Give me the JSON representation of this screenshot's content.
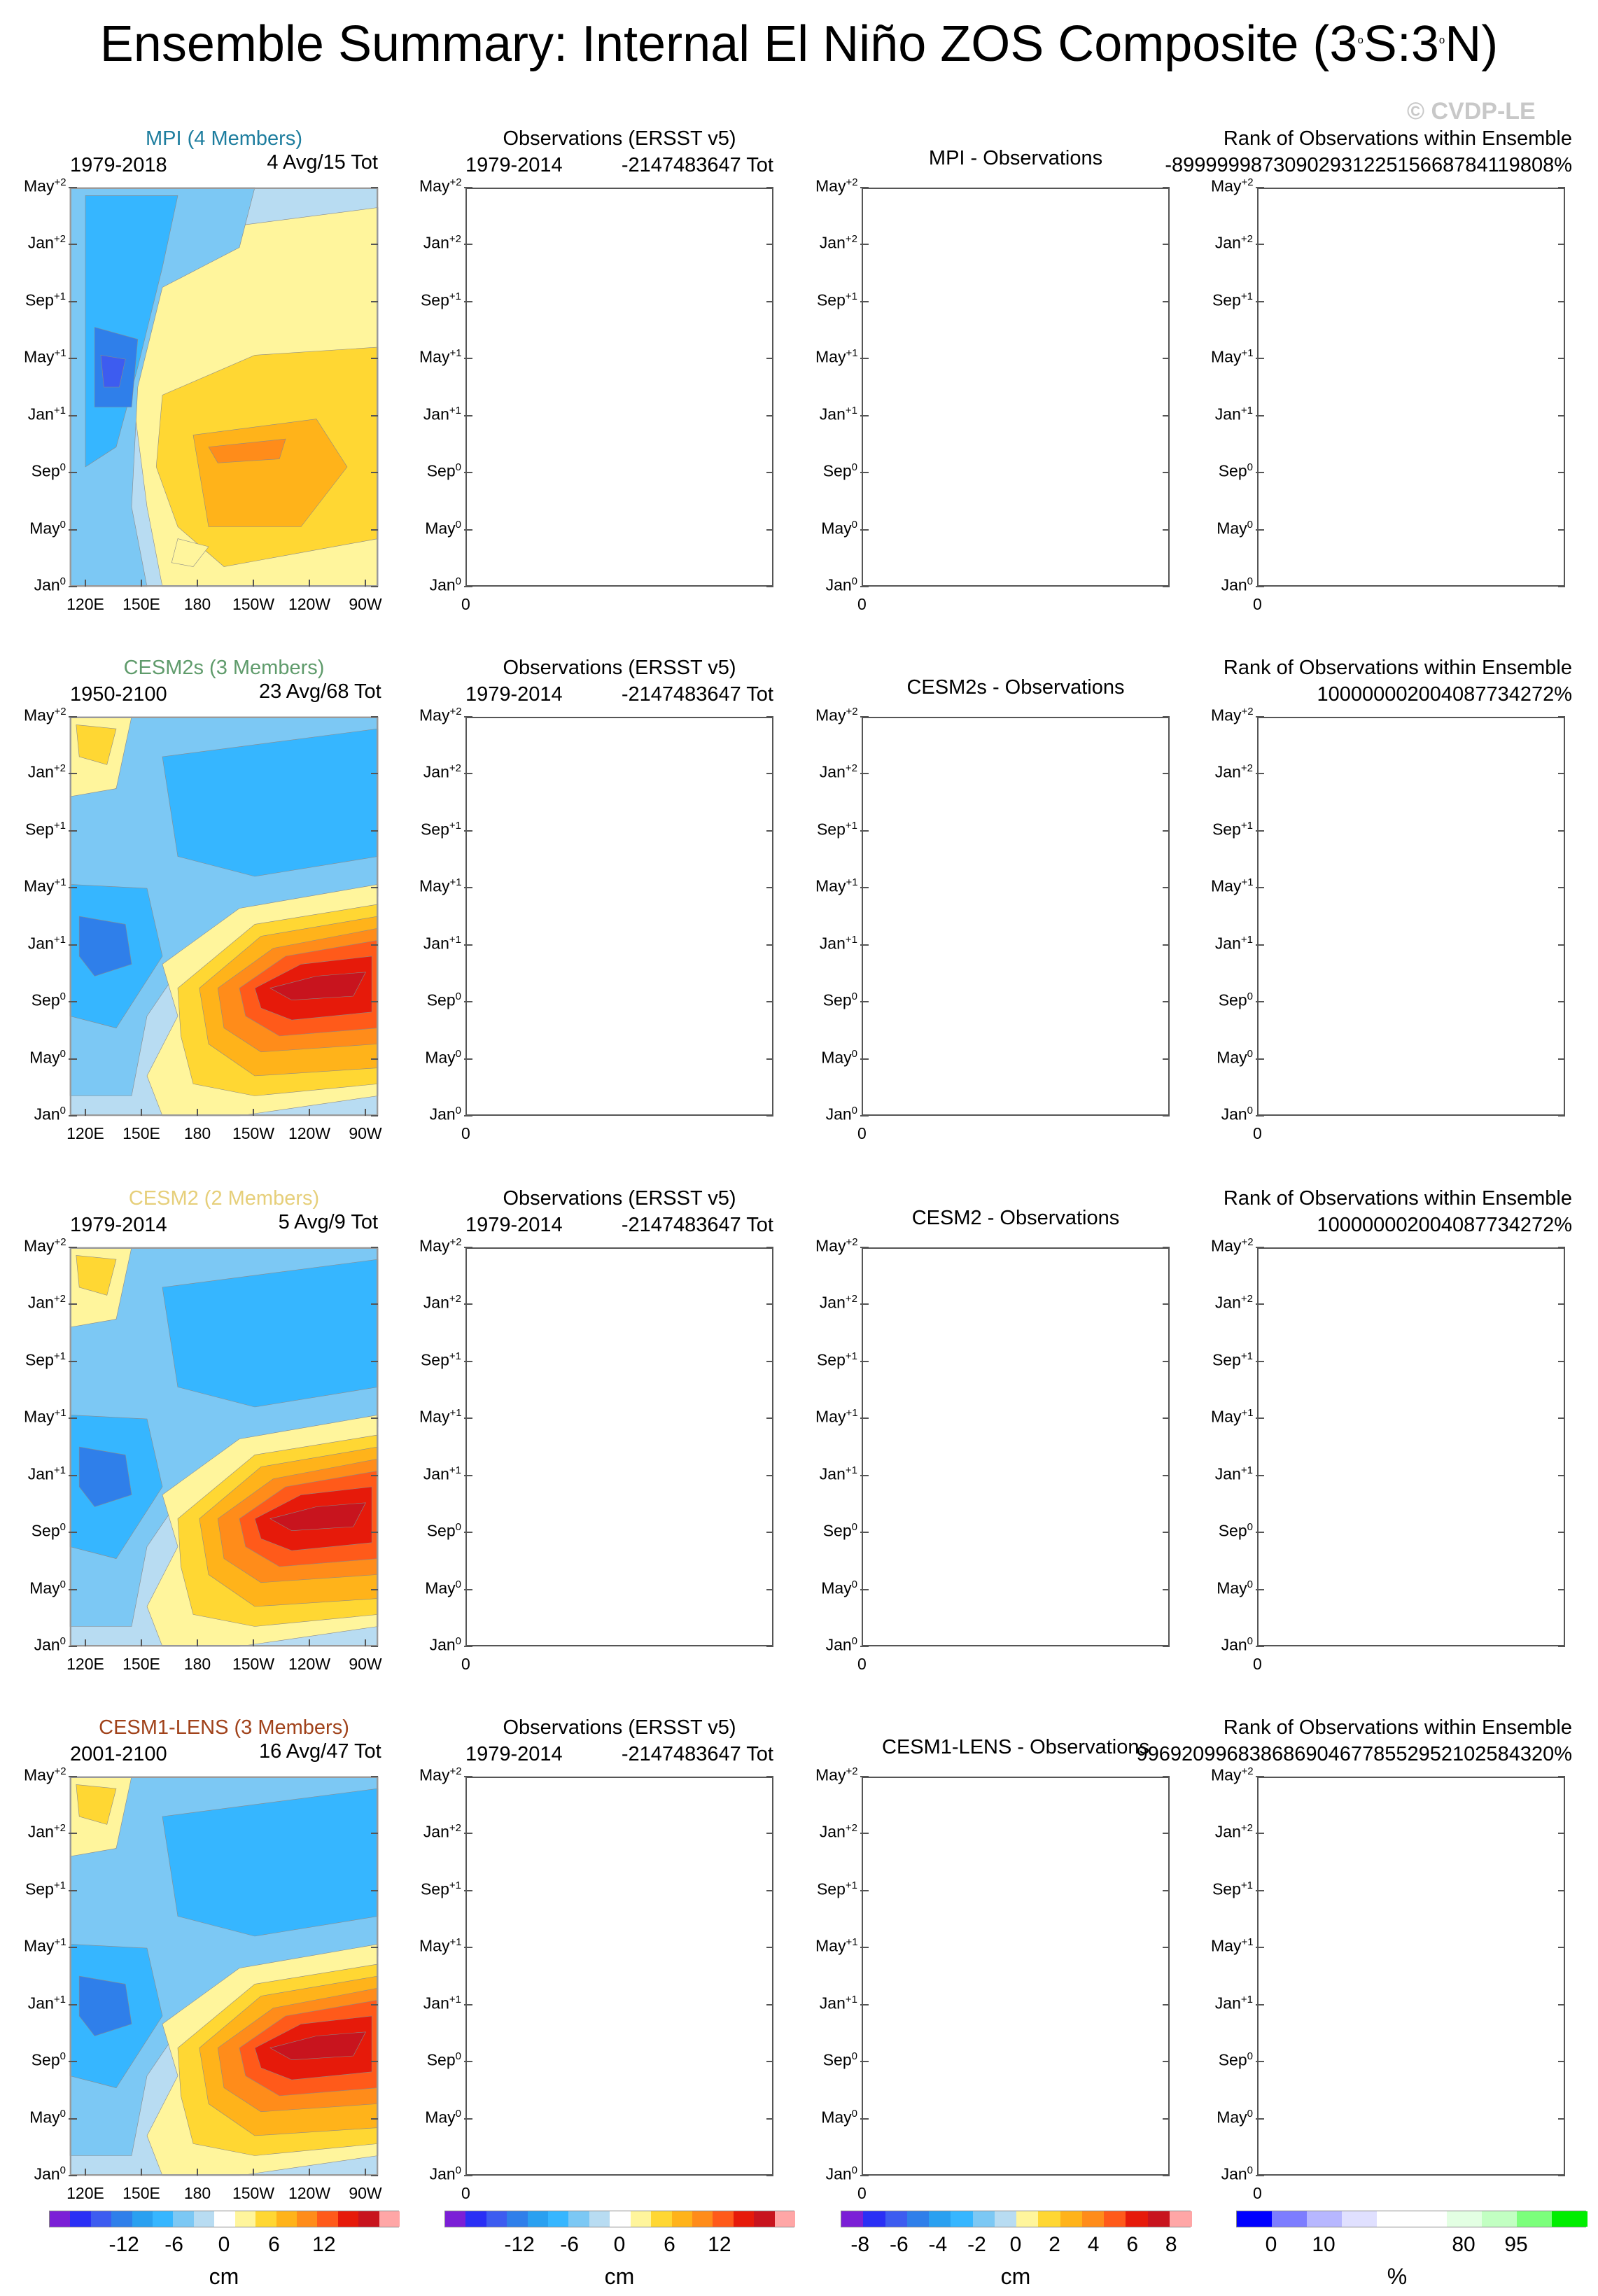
{
  "title_html": "Ensemble Summary: Internal El Niño ZOS Composite (3<sup>o</sup>S:3<sup>o</sup>N)",
  "title_text": "Ensemble Summary: Internal El Niño ZOS Composite (3oS:3oN)",
  "watermark": "© CVDP-LE",
  "y_ticks": [
    {
      "m": "May",
      "s": "+2"
    },
    {
      "m": "Jan",
      "s": "+2"
    },
    {
      "m": "Sep",
      "s": "+1"
    },
    {
      "m": "May",
      "s": "+1"
    },
    {
      "m": "Jan",
      "s": "+1"
    },
    {
      "m": "Sep",
      "s": "0"
    },
    {
      "m": "May",
      "s": "0"
    },
    {
      "m": "Jan",
      "s": "0"
    }
  ],
  "lon_ticks": [
    "120E",
    "150E",
    "180",
    "150W",
    "120W",
    "90W"
  ],
  "obs_x_tick": "0",
  "rows": [
    {
      "model": "MPI (4 Members)",
      "model_color": "#1d7d9e",
      "years": "1979-2018",
      "count": "4 Avg/15 Tot",
      "obs_title": "Observations (ERSST v5)",
      "obs_years": "1979-2014",
      "obs_count": "-2147483647 Tot",
      "diff_title": "MPI - Observations",
      "rank_title": "Rank of Observations within Ensemble",
      "rank_value": "-899999987309029312251566878411980​8%"
    },
    {
      "model": "CESM2s (3 Members)",
      "model_color": "#5f9b6b",
      "years": "1950-2100",
      "count": "23 Avg/68 Tot",
      "obs_title": "Observations (ERSST v5)",
      "obs_years": "1979-2014",
      "obs_count": "-2147483647 Tot",
      "diff_title": "CESM2s - Observations",
      "rank_title": "Rank of Observations within Ensemble",
      "rank_value": "100000002004087734272%"
    },
    {
      "model": "CESM2 (2 Members)",
      "model_color": "#e6cf7a",
      "years": "1979-2014",
      "count": "5 Avg/9 Tot",
      "obs_title": "Observations (ERSST v5)",
      "obs_years": "1979-2014",
      "obs_count": "-2147483647 Tot",
      "diff_title": "CESM2 - Observations",
      "rank_title": "Rank of Observations within Ensemble",
      "rank_value": "100000002004087734272%"
    },
    {
      "model": "CESM1-LENS (3 Members)",
      "model_color": "#a0421a",
      "years": "2001-2100",
      "count": "16 Avg/47 Tot",
      "obs_title": "Observations (ERSST v5)",
      "obs_years": "1979-2014",
      "obs_count": "-2147483647 Tot",
      "diff_title": "CESM1-LENS - Observations",
      "rank_title": "Rank of Observations within Ensemble",
      "rank_value": "99692099683868690467785529521025843​20%"
    }
  ],
  "colorbars": [
    {
      "unit": "cm",
      "labels": [
        "-12",
        "-6",
        "0",
        "6",
        "12"
      ],
      "colors": [
        "#7b1fd6",
        "#2a2ff5",
        "#3d5cf0",
        "#2f7fea",
        "#2aa0f0",
        "#36b6ff",
        "#7cc8f4",
        "#b8dcf2",
        "#ffffff",
        "#fff59c",
        "#ffd733",
        "#ffb31a",
        "#ff8c1a",
        "#ff5a1a",
        "#e61a0a",
        "#c8141e",
        "#ffa6a6"
      ]
    },
    {
      "unit": "cm",
      "labels": [
        "-12",
        "-6",
        "0",
        "6",
        "12"
      ],
      "colors": [
        "#7b1fd6",
        "#2a2ff5",
        "#3d5cf0",
        "#2f7fea",
        "#2aa0f0",
        "#36b6ff",
        "#7cc8f4",
        "#b8dcf2",
        "#ffffff",
        "#fff59c",
        "#ffd733",
        "#ffb31a",
        "#ff8c1a",
        "#ff5a1a",
        "#e61a0a",
        "#c8141e",
        "#ffa6a6"
      ]
    },
    {
      "unit": "cm",
      "labels": [
        "-8",
        "-6",
        "-4",
        "-2",
        "0",
        "2",
        "4",
        "6",
        "8"
      ],
      "colors": [
        "#7b1fd6",
        "#2a2ff5",
        "#3d5cf0",
        "#2f7fea",
        "#2aa0f0",
        "#36b6ff",
        "#7cc8f4",
        "#b8dcf2",
        "#fff59c",
        "#ffd733",
        "#ffb31a",
        "#ff8c1a",
        "#ff5a1a",
        "#e61a0a",
        "#c8141e",
        "#ffa6a6"
      ]
    },
    {
      "unit": "%",
      "labels": [
        "0",
        "10",
        "80",
        "95"
      ],
      "colors": [
        "#0000ff",
        "#7d7dff",
        "#b7b7ff",
        "#e0e0ff",
        "#ffffff",
        "#ffffff",
        "#e3ffe3",
        "#c2ffc2",
        "#7cff7c",
        "#00ee00"
      ]
    }
  ],
  "chart_data": [
    {
      "type": "heatmap",
      "title": "MPI (4 Members)",
      "xlabel": "",
      "ylabel": "",
      "x_ticks": [
        "120E",
        "150E",
        "180",
        "150W",
        "120W",
        "90W"
      ],
      "y_ticks": [
        "May+2",
        "Jan+2",
        "Sep+1",
        "May+1",
        "Jan+1",
        "Sep0",
        "May0",
        "Jan0"
      ],
      "note_values_cm": {
        "western_pacific_min": -8,
        "central_east_max": 6
      }
    },
    {
      "type": "heatmap",
      "title": "CESM2s (3 Members)",
      "xlabel": "",
      "ylabel": "",
      "x_ticks": [
        "120E",
        "150E",
        "180",
        "150W",
        "120W",
        "90W"
      ],
      "y_ticks": [
        "May+2",
        "Jan+2",
        "Sep+1",
        "May+1",
        "Jan+1",
        "Sep0",
        "May0",
        "Jan0"
      ],
      "note_values_cm": {
        "western_pacific_min": -10,
        "central_east_max": 14
      }
    },
    {
      "type": "heatmap",
      "title": "CESM2 (2 Members)",
      "xlabel": "",
      "ylabel": "",
      "x_ticks": [
        "120E",
        "150E",
        "180",
        "150W",
        "120W",
        "90W"
      ],
      "y_ticks": [
        "May+2",
        "Jan+2",
        "Sep+1",
        "May+1",
        "Jan+1",
        "Sep0",
        "May0",
        "Jan0"
      ],
      "note_values_cm": {
        "western_pacific_min": -10,
        "central_east_max": 14
      }
    },
    {
      "type": "heatmap",
      "title": "CESM1-LENS (3 Members)",
      "xlabel": "",
      "ylabel": "",
      "x_ticks": [
        "120E",
        "150E",
        "180",
        "150W",
        "120W",
        "90W"
      ],
      "y_ticks": [
        "May+2",
        "Jan+2",
        "Sep+1",
        "May+1",
        "Jan+1",
        "Sep0",
        "May0",
        "Jan0"
      ],
      "note_values_cm": {
        "western_pacific_min": -10,
        "central_east_max": 15
      }
    }
  ]
}
